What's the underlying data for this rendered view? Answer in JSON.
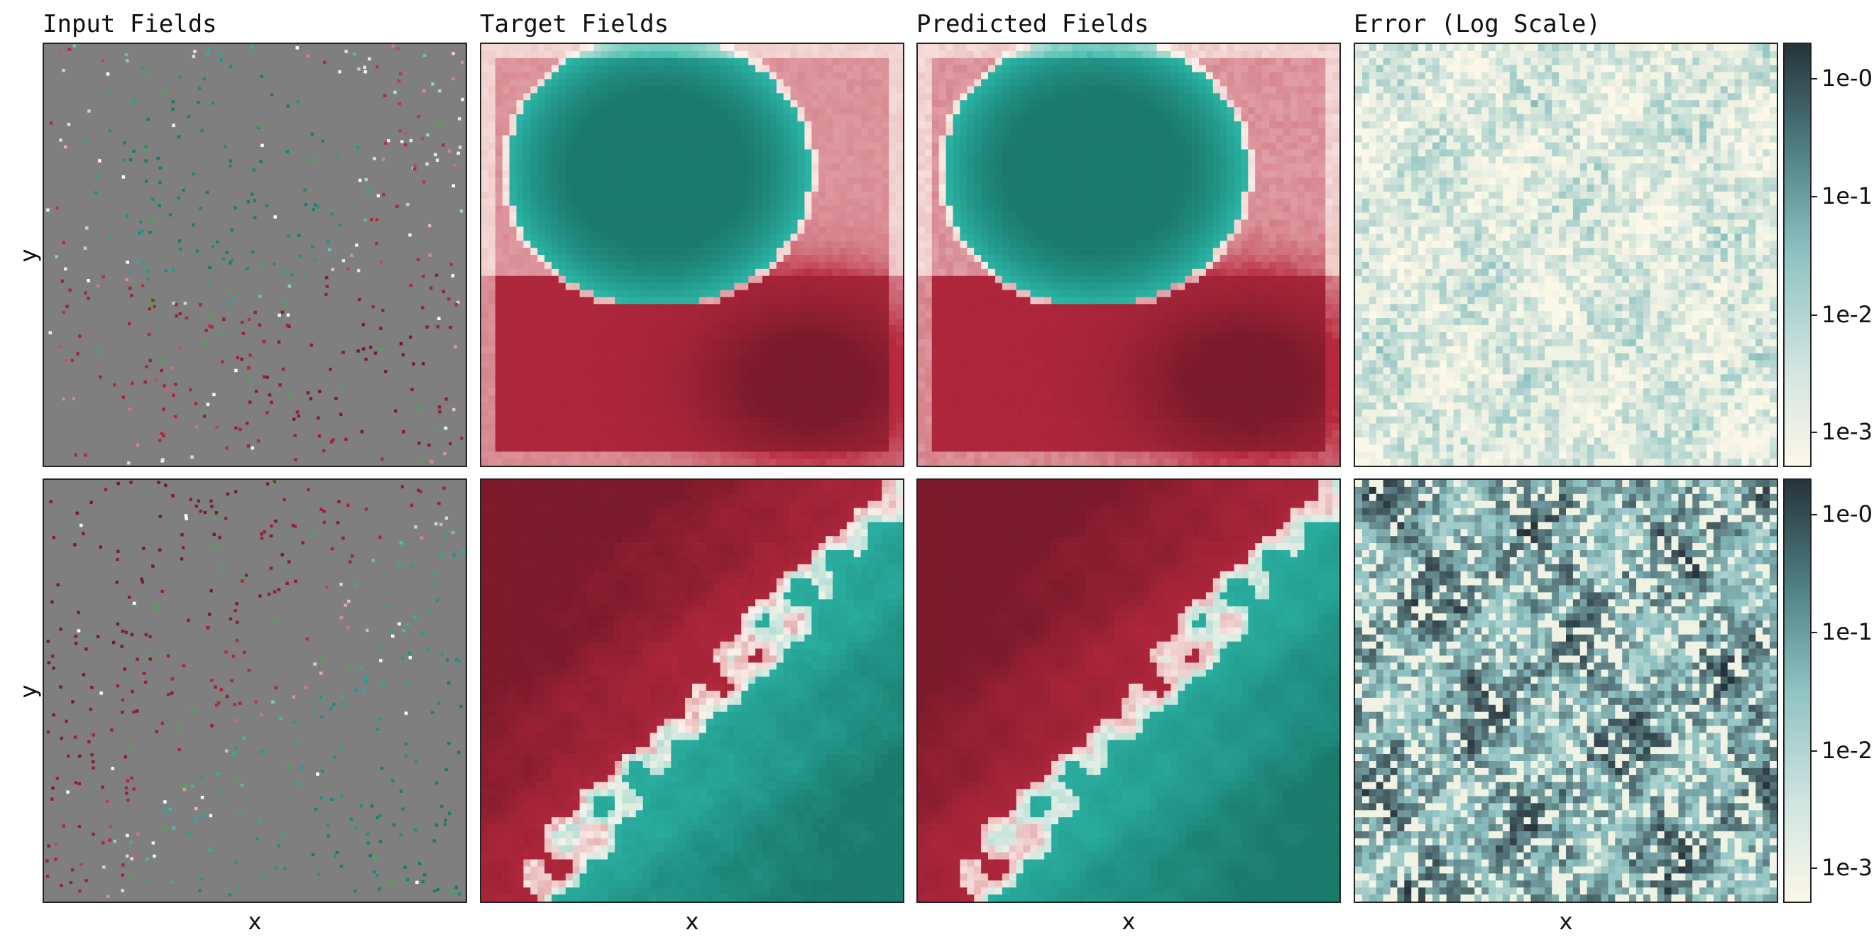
{
  "chart_data": {
    "type": "heatmap",
    "column_titles": [
      "Input Fields",
      "Target Fields",
      "Predicted Fields",
      "Error (Log Scale)"
    ],
    "xlabel": "x",
    "ylabel": "y",
    "rows": 2,
    "colorbar": {
      "scale": "log",
      "tick_labels": [
        "1e-0",
        "1e-1",
        "1e-2",
        "1e-3"
      ]
    },
    "colors": {
      "positive_red": "#b7283e",
      "dark_red": "#7a1a2a",
      "negative_teal": "#2bb5a6",
      "dark_teal": "#1a7a6c",
      "mask_gray": "#7f7f7f",
      "error_light": "#fbf8e8",
      "error_dark": "#26333b"
    }
  }
}
